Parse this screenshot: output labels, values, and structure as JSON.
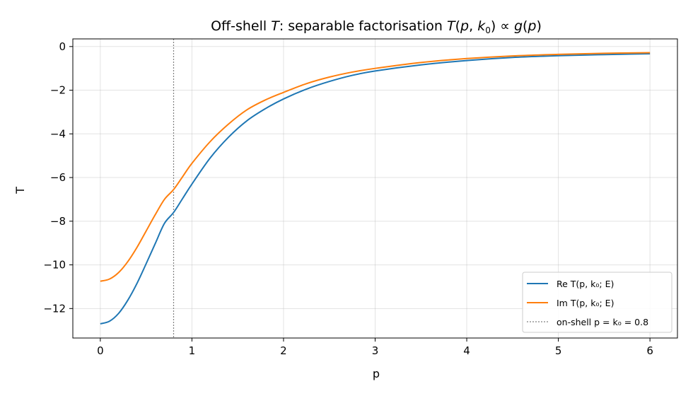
{
  "chart_data": {
    "type": "line",
    "title": "Off-shell T: separable factorisation T(p, k₀) ∝ g(p)",
    "xlabel": "p",
    "ylabel": "T",
    "xlim": [
      -0.3,
      6.3
    ],
    "ylim": [
      -13.35,
      0.35
    ],
    "xticks": [
      0,
      1,
      2,
      3,
      4,
      5,
      6
    ],
    "yticks": [
      0,
      -2,
      -4,
      -6,
      -8,
      -10,
      -12
    ],
    "xtick_labels": [
      "0",
      "1",
      "2",
      "3",
      "4",
      "5",
      "6"
    ],
    "ytick_labels": [
      "0",
      "−2",
      "−4",
      "−6",
      "−8",
      "−10",
      "−12"
    ],
    "grid": true,
    "legend_position": "lower-right",
    "x": [
      0,
      0.1,
      0.2,
      0.3,
      0.4,
      0.5,
      0.6,
      0.7,
      0.8,
      0.9,
      1.0,
      1.2,
      1.4,
      1.6,
      1.8,
      2.0,
      2.25,
      2.5,
      2.75,
      3.0,
      3.5,
      4.0,
      4.5,
      5.0,
      5.5,
      6.0
    ],
    "series": [
      {
        "name": "Re T(p, k₀; E)",
        "color": "#1f77b4",
        "values": [
          -12.7,
          -12.58,
          -12.22,
          -11.62,
          -10.85,
          -9.95,
          -9.02,
          -8.1,
          -7.6,
          -6.95,
          -6.3,
          -5.1,
          -4.15,
          -3.4,
          -2.85,
          -2.4,
          -1.95,
          -1.6,
          -1.32,
          -1.12,
          -0.84,
          -0.64,
          -0.5,
          -0.42,
          -0.37,
          -0.33
        ]
      },
      {
        "name": "Im T(p, k₀; E)",
        "color": "#ff7f0e",
        "values": [
          -10.75,
          -10.65,
          -10.35,
          -9.85,
          -9.2,
          -8.45,
          -7.7,
          -7.0,
          -6.55,
          -5.95,
          -5.35,
          -4.35,
          -3.55,
          -2.9,
          -2.45,
          -2.1,
          -1.7,
          -1.4,
          -1.17,
          -1.0,
          -0.73,
          -0.55,
          -0.43,
          -0.36,
          -0.31,
          -0.28
        ]
      }
    ],
    "vline": {
      "x": 0.8,
      "color": "#808080",
      "label": "on-shell p = k₀ = 0.8"
    }
  }
}
